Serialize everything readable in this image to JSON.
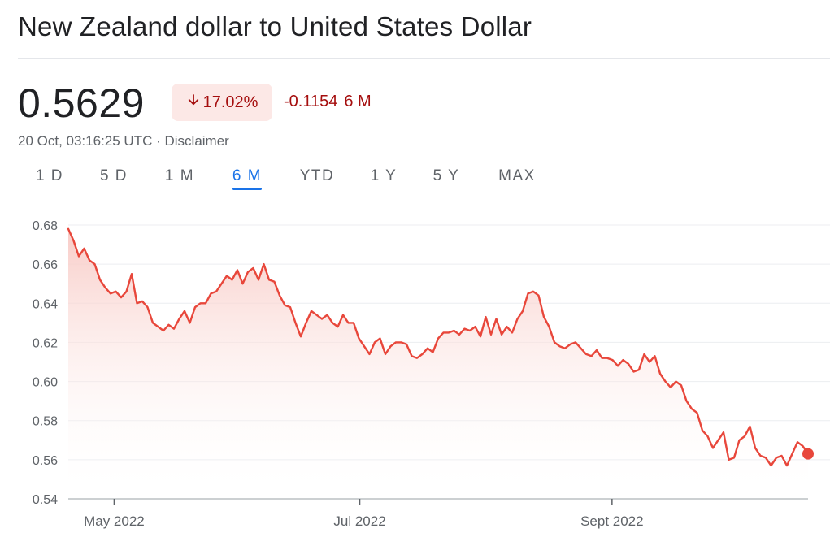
{
  "header": {
    "title": "New Zealand dollar to United States Dollar"
  },
  "quote": {
    "price": "0.5629",
    "change_percent": "17.02%",
    "change_direction": "down",
    "change_value": "-0.1154",
    "change_period": "6 M",
    "timestamp": "20 Oct, 03:16:25 UTC",
    "separator": " · ",
    "disclaimer": "Disclaimer"
  },
  "tabs": [
    {
      "label": "1 D",
      "active": false
    },
    {
      "label": "5 D",
      "active": false
    },
    {
      "label": "1 M",
      "active": false
    },
    {
      "label": "6 M",
      "active": true
    },
    {
      "label": "YTD",
      "active": false
    },
    {
      "label": "1 Y",
      "active": false
    },
    {
      "label": "5 Y",
      "active": false
    },
    {
      "label": "MAX",
      "active": false
    }
  ],
  "colors": {
    "line": "#e8473b",
    "fill_top": "#f8c9c4",
    "negative_text": "#a50e0e",
    "negative_bg": "#fce8e6",
    "accent": "#1a73e8"
  },
  "chart_data": {
    "type": "area",
    "title": "",
    "xlabel": "",
    "ylabel": "",
    "ylim": [
      0.54,
      0.68
    ],
    "y_ticks": [
      "0.68",
      "0.66",
      "0.64",
      "0.62",
      "0.60",
      "0.58",
      "0.56",
      "0.54"
    ],
    "x_ticks": [
      "May 2022",
      "Jul 2022",
      "Sept 2022"
    ],
    "grid": true,
    "series": [
      {
        "values": [
          0.678,
          0.672,
          0.664,
          0.668,
          0.662,
          0.66,
          0.652,
          0.648,
          0.645,
          0.646,
          0.643,
          0.646,
          0.655,
          0.64,
          0.641,
          0.638,
          0.63,
          0.628,
          0.626,
          0.629,
          0.627,
          0.632,
          0.636,
          0.63,
          0.638,
          0.64,
          0.64,
          0.645,
          0.646,
          0.65,
          0.654,
          0.652,
          0.657,
          0.65,
          0.656,
          0.658,
          0.652,
          0.66,
          0.652,
          0.651,
          0.644,
          0.639,
          0.638,
          0.63,
          0.623,
          0.63,
          0.636,
          0.634,
          0.632,
          0.634,
          0.63,
          0.628,
          0.634,
          0.63,
          0.63,
          0.622,
          0.618,
          0.614,
          0.62,
          0.622,
          0.614,
          0.618,
          0.62,
          0.62,
          0.619,
          0.613,
          0.612,
          0.614,
          0.617,
          0.615,
          0.622,
          0.625,
          0.625,
          0.626,
          0.624,
          0.627,
          0.626,
          0.628,
          0.623,
          0.633,
          0.624,
          0.632,
          0.624,
          0.628,
          0.625,
          0.632,
          0.636,
          0.645,
          0.646,
          0.644,
          0.633,
          0.628,
          0.62,
          0.618,
          0.617,
          0.619,
          0.62,
          0.617,
          0.614,
          0.613,
          0.616,
          0.612,
          0.612,
          0.611,
          0.608,
          0.611,
          0.609,
          0.605,
          0.606,
          0.614,
          0.61,
          0.613,
          0.604,
          0.6,
          0.597,
          0.6,
          0.598,
          0.59,
          0.586,
          0.584,
          0.575,
          0.572,
          0.566,
          0.57,
          0.574,
          0.56,
          0.561,
          0.57,
          0.572,
          0.577,
          0.566,
          0.562,
          0.561,
          0.557,
          0.561,
          0.562,
          0.557,
          0.563,
          0.569,
          0.567,
          0.563
        ]
      }
    ]
  }
}
